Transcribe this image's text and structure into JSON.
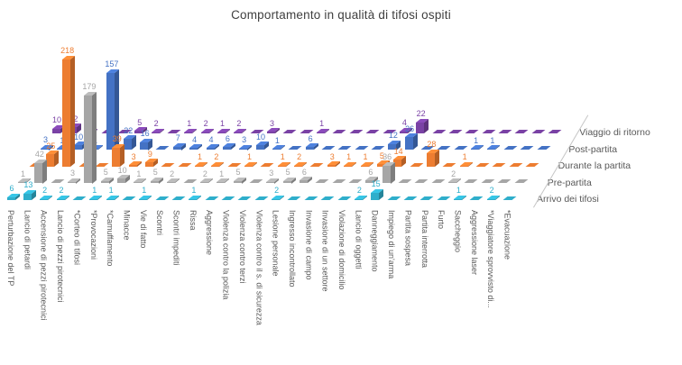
{
  "title": "Comportamento in qualità di tifosi ospiti",
  "chart_data": {
    "type": "bar",
    "subtype": "3d-bar-rows",
    "title": "Comportamento in qualità di tifosi ospiti",
    "xlabel": "",
    "ylabel": "",
    "ylim": [
      0,
      220
    ],
    "grid": false,
    "legend_position": "right-depth-axis",
    "categories": [
      "Perturbazione del TP",
      "Lancio di petardi",
      "Accensione di pezzi pirotecnici",
      "Lancio di pezzi pirotecnici",
      "*Corteo di tifosi",
      "*Provocazioni",
      "*Camuffamento",
      "Minacce",
      "Vie di fatto",
      "Scontri",
      "Scontri impediti",
      "Rissa",
      "Aggressione",
      "Violenza contro la polizia",
      "Violenza contro terzi",
      "Violenza contro il s. di sicurezza",
      "Lesione personale",
      "Ingresso incontrollato",
      "Invasione di campo",
      "Invasione di un settore",
      "Violazione di domicilio",
      "Lancio di oggetti",
      "Danneggiamento",
      "Impiego di un'arma",
      "Partita sospesa",
      "Partita interrotta",
      "Furto",
      "Saccheggio",
      "Aggressione laser",
      "*Viaggiatore sprovvisto di...",
      "*Evacuazione"
    ],
    "series": [
      {
        "name": "Arrivo dei tifosi",
        "color": "#2FAECB",
        "values": [
          6,
          13,
          2,
          2,
          0,
          1,
          1,
          0,
          1,
          0,
          0,
          1,
          0,
          0,
          0,
          0,
          2,
          0,
          0,
          0,
          0,
          2,
          15,
          0,
          0,
          0,
          0,
          1,
          0,
          2,
          0
        ]
      },
      {
        "name": "Pre-partita",
        "color": "#A6A6A6",
        "values": [
          1,
          42,
          0,
          3,
          179,
          5,
          10,
          1,
          5,
          2,
          0,
          2,
          1,
          5,
          0,
          3,
          5,
          6,
          0,
          0,
          0,
          6,
          36,
          0,
          0,
          0,
          2,
          0,
          0,
          0,
          0
        ]
      },
      {
        "name": "Durante la partita",
        "color": "#ED7D31",
        "values": [
          0,
          25,
          218,
          0,
          0,
          39,
          3,
          9,
          0,
          0,
          1,
          2,
          0,
          1,
          0,
          1,
          2,
          0,
          3,
          1,
          1,
          5,
          14,
          0,
          28,
          0,
          1,
          0,
          0,
          0,
          0
        ]
      },
      {
        "name": "Post-partita",
        "color": "#4472C4",
        "values": [
          3,
          1,
          10,
          1,
          157,
          22,
          16,
          0,
          7,
          4,
          4,
          6,
          3,
          10,
          1,
          0,
          6,
          0,
          0,
          0,
          0,
          12,
          26,
          0,
          0,
          0,
          1,
          1,
          0,
          0,
          0
        ]
      },
      {
        "name": "Viaggio di ritorno",
        "color": "#7A42A5",
        "values": [
          10,
          12,
          2,
          0,
          0,
          5,
          2,
          0,
          1,
          2,
          1,
          2,
          0,
          3,
          0,
          0,
          1,
          0,
          0,
          0,
          0,
          4,
          22,
          0,
          0,
          0,
          0,
          0,
          0,
          0,
          0
        ]
      }
    ]
  }
}
